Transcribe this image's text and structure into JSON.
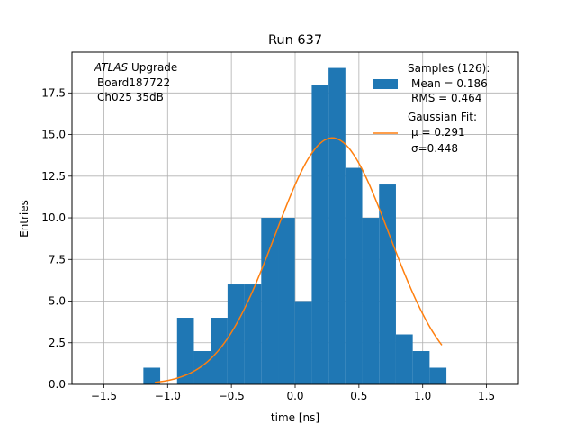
{
  "chart_data": {
    "type": "bar",
    "title": "Run 637",
    "xlabel": "time [ns]",
    "ylabel": "Entries",
    "xlim": [
      -1.75,
      1.75
    ],
    "ylim": [
      0,
      19.95
    ],
    "grid": true,
    "xticks": [
      -1.5,
      -1.0,
      -0.5,
      0.0,
      0.5,
      1.0,
      1.5
    ],
    "xtick_labels": [
      "−1.5",
      "−1.0",
      "−0.5",
      "0.0",
      "0.5",
      "1.0",
      "1.5"
    ],
    "yticks": [
      0,
      2.5,
      5,
      7.5,
      10,
      12.5,
      15,
      17.5
    ],
    "ytick_labels": [
      "0.0",
      "2.5",
      "5.0",
      "7.5",
      "10.0",
      "12.5",
      "15.0",
      "17.5"
    ],
    "histogram": {
      "name": "Samples (126):",
      "color": "#1f77b4",
      "bin_edges": [
        -1.19,
        -1.058,
        -0.926,
        -0.794,
        -0.662,
        -0.53,
        -0.398,
        -0.266,
        -0.134,
        -0.002,
        0.13,
        0.262,
        0.394,
        0.526,
        0.658,
        0.79,
        0.922,
        1.054,
        1.186
      ],
      "values": [
        1,
        0,
        4,
        2,
        4,
        6,
        6,
        10,
        10,
        5,
        18,
        19,
        13,
        10,
        12,
        3,
        2,
        1
      ]
    },
    "gaussian_fit": {
      "name": "Gaussian Fit:",
      "color": "#ff7f0e",
      "mu": 0.291,
      "sigma": 0.448,
      "amplitude": 14.8,
      "x_range": [
        -1.1,
        1.15
      ]
    },
    "legend": {
      "placement": "top-right",
      "samples_label": "Samples (126):",
      "mean_label": "Mean = 0.186",
      "rms_label": "RMS = 0.464",
      "fit_label": "Gaussian Fit:",
      "mu_label": "μ = 0.291",
      "sigma_label": "σ=0.448"
    },
    "annotation": {
      "line1_italic": "ATLAS",
      "line1_rest": " Upgrade",
      "line2": "Board187722",
      "line3": "Ch025 35dB"
    }
  }
}
